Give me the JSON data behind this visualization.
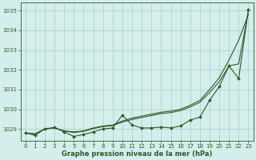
{
  "background_color": "#d4eeeb",
  "grid_color": "#a8cdc8",
  "line_color": "#2d5a27",
  "xlabel": "Graphe pression niveau de la mer (hPa)",
  "ylim": [
    1028.4,
    1035.4
  ],
  "xlim": [
    -0.5,
    23.5
  ],
  "yticks": [
    1029,
    1030,
    1031,
    1032,
    1033,
    1034,
    1035
  ],
  "xticks": [
    0,
    1,
    2,
    3,
    4,
    5,
    6,
    7,
    8,
    9,
    10,
    11,
    12,
    13,
    14,
    15,
    16,
    17,
    18,
    19,
    20,
    21,
    22,
    23
  ],
  "x": [
    0,
    1,
    2,
    3,
    4,
    5,
    6,
    7,
    8,
    9,
    10,
    11,
    12,
    13,
    14,
    15,
    16,
    17,
    18,
    19,
    20,
    21,
    22,
    23
  ],
  "line_smooth_top": [
    1028.8,
    1028.75,
    1029.0,
    1029.05,
    1028.9,
    1028.85,
    1028.9,
    1029.05,
    1029.15,
    1029.2,
    1029.4,
    1029.55,
    1029.65,
    1029.75,
    1029.85,
    1029.9,
    1030.0,
    1030.2,
    1030.45,
    1031.0,
    1031.6,
    1032.5,
    1033.5,
    1034.8
  ],
  "line_smooth_mid": [
    1028.8,
    1028.75,
    1029.0,
    1029.05,
    1028.9,
    1028.82,
    1028.88,
    1029.02,
    1029.12,
    1029.17,
    1029.35,
    1029.48,
    1029.58,
    1029.68,
    1029.78,
    1029.83,
    1029.93,
    1030.12,
    1030.35,
    1030.85,
    1031.4,
    1032.2,
    1032.3,
    1035.0
  ],
  "line_markers": [
    1028.8,
    1028.68,
    1029.0,
    1029.08,
    1028.85,
    1028.62,
    1028.72,
    1028.85,
    1029.0,
    1029.05,
    1029.7,
    1029.2,
    1029.05,
    1029.05,
    1029.1,
    1029.05,
    1029.15,
    1029.45,
    1029.6,
    1030.45,
    1031.15,
    1032.2,
    1031.55,
    1035.05
  ]
}
